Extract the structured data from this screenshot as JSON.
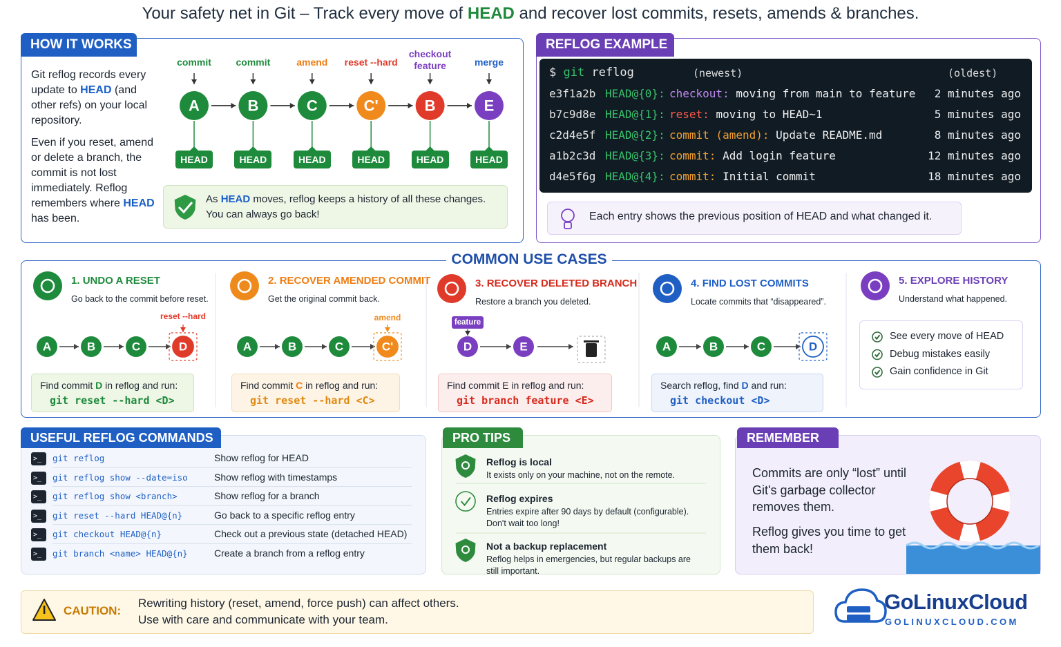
{
  "title": [
    "Your safety net in Git – Track every move of ",
    "HEAD",
    " and recover lost commits, resets, amends & branches."
  ],
  "how_it_works": {
    "heading": "HOW IT WORKS",
    "para1": [
      "Git reflog records every update to ",
      "HEAD",
      " (and other refs) on your local repository."
    ],
    "para2": [
      "Even if you reset, amend or delete a branch, the commit is not lost immediately. Reflog remembers where ",
      "HEAD",
      " has been."
    ],
    "steps": [
      {
        "action": "commit",
        "node": "A",
        "ref": "HEAD"
      },
      {
        "action": "commit",
        "node": "B",
        "ref": "HEAD"
      },
      {
        "action": "amend",
        "node": "C",
        "ref": "HEAD"
      },
      {
        "action": "reset --hard",
        "node": "C'",
        "ref": "HEAD"
      },
      {
        "action": "checkout feature",
        "node": "B",
        "ref": "HEAD"
      },
      {
        "action": "merge",
        "node": "E",
        "ref": "HEAD"
      }
    ],
    "note_line1": [
      "As ",
      "HEAD",
      " moves, reflog keeps a history of all these changes."
    ],
    "note_line2": "You can always go back!"
  },
  "reflog_example": {
    "heading": "REFLOG EXAMPLE",
    "prompt": "$",
    "command": "git",
    "argument": "reflog",
    "newest": "(newest)",
    "oldest": "(oldest)",
    "entries": [
      {
        "hash": "e3f1a2b",
        "ref": "HEAD@{0}:",
        "action": "checkout:",
        "message": "moving from main to feature",
        "time": "2 minutes ago"
      },
      {
        "hash": "b7c9d8e",
        "ref": "HEAD@{1}:",
        "action": "reset:",
        "message": "moving to HEAD~1",
        "time": "5 minutes ago"
      },
      {
        "hash": "c2d4e5f",
        "ref": "HEAD@{2}:",
        "action": "commit (amend):",
        "message": "Update README.md",
        "time": "8 minutes ago"
      },
      {
        "hash": "a1b2c3d",
        "ref": "HEAD@{3}:",
        "action": "commit:",
        "message": "Add login feature",
        "time": "12 minutes ago"
      },
      {
        "hash": "d4e5f6g",
        "ref": "HEAD@{4}:",
        "action": "commit:",
        "message": "Initial commit",
        "time": "18 minutes ago"
      }
    ],
    "note": "Each entry shows the previous position of HEAD and what changed it."
  },
  "use_cases": {
    "heading": "COMMON USE CASES",
    "cases": [
      {
        "number": "1.",
        "title": "UNDO A RESET",
        "subtitle": "Go back to the commit before reset.",
        "marker": "reset --hard",
        "nodes": [
          "A",
          "B",
          "C",
          "D"
        ],
        "find": [
          "Find commit ",
          "D",
          " in reflog and run:"
        ],
        "command": "git reset --hard <D>"
      },
      {
        "number": "2.",
        "title": "RECOVER AMENDED COMMIT",
        "subtitle": "Get the original commit back.",
        "marker": "amend",
        "nodes": [
          "A",
          "B",
          "C",
          "C'"
        ],
        "find": [
          "Find commit ",
          "C",
          " in reflog and run:"
        ],
        "command": "git reset --hard <C>"
      },
      {
        "number": "3.",
        "title": "RECOVER DELETED BRANCH",
        "subtitle": "Restore a branch you deleted.",
        "marker": "feature",
        "nodes": [
          "D",
          "E"
        ],
        "find": [
          "Find commit E in reflog and run:"
        ],
        "command": "git branch feature <E>"
      },
      {
        "number": "4.",
        "title": "FIND LOST COMMITS",
        "subtitle": "Locate commits that “disappeared”.",
        "nodes": [
          "A",
          "B",
          "C",
          "D"
        ],
        "find": [
          "Search reflog, find ",
          "D",
          " and run:"
        ],
        "command": "git checkout <D>"
      },
      {
        "number": "5.",
        "title": "EXPLORE HISTORY",
        "subtitle": "Understand what happened.",
        "checklist": [
          "See every move of HEAD",
          "Debug mistakes easily",
          "Gain confidence in Git"
        ]
      }
    ]
  },
  "commands": {
    "heading": "USEFUL REFLOG COMMANDS",
    "rows": [
      {
        "command": "git reflog",
        "description": "Show reflog for HEAD"
      },
      {
        "command": "git reflog show --date=iso",
        "description": "Show reflog with timestamps"
      },
      {
        "command": "git reflog show <branch>",
        "description": "Show reflog for a branch"
      },
      {
        "command": "git reset --hard HEAD@{n}",
        "description": "Go back to a specific reflog entry"
      },
      {
        "command": "git checkout HEAD@{n}",
        "description": "Check out a previous state (detached HEAD)"
      },
      {
        "command": "git branch <name> HEAD@{n}",
        "description": "Create a branch from a reflog entry"
      }
    ]
  },
  "pro_tips": {
    "heading": "PRO TIPS",
    "tips": [
      {
        "title": "Reflog is local",
        "text": "It exists only on your machine, not on the remote."
      },
      {
        "title": "Reflog expires",
        "text": "Entries expire after 90 days by default (configurable). Don't wait too long!"
      },
      {
        "title": "Not a backup replacement",
        "text": "Reflog helps in emergencies, but regular backups are still important."
      }
    ]
  },
  "remember": {
    "heading": "REMEMBER",
    "lines": [
      "Commits are only “lost” until Git's garbage collector removes them.",
      "Reflog gives you time to get them back!"
    ]
  },
  "caution": {
    "label": "CAUTION:",
    "lines": [
      "Rewriting history (reset, amend, force push) can affect others.",
      "Use with care and communicate with your team."
    ]
  },
  "brand": {
    "name": "GoLinuxCloud",
    "url": "GOLINUXCLOUD.COM"
  }
}
